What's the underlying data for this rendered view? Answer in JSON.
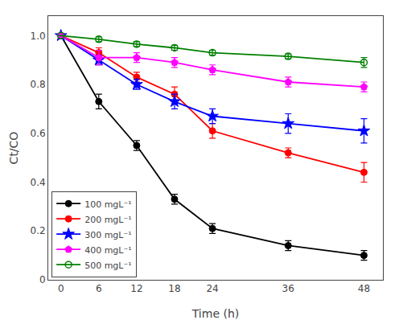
{
  "chart_data": {
    "type": "line",
    "x_label": "Time (h)",
    "y_label": "Ct/CO",
    "x": [
      0,
      6,
      12,
      18,
      24,
      36,
      48
    ],
    "series": [
      {
        "name": "100 mgL⁻¹",
        "color": "black",
        "marker": "circle",
        "values": [
          1.0,
          0.73,
          0.55,
          0.33,
          0.21,
          0.14,
          0.1
        ],
        "errors": [
          0.0,
          0.03,
          0.02,
          0.02,
          0.02,
          0.02,
          0.02
        ]
      },
      {
        "name": "200 mgL⁻¹",
        "color": "red",
        "marker": "circle",
        "values": [
          1.0,
          0.93,
          0.83,
          0.76,
          0.61,
          0.52,
          0.44
        ],
        "errors": [
          0.0,
          0.02,
          0.02,
          0.03,
          0.03,
          0.02,
          0.04
        ]
      },
      {
        "name": "300 mgL⁻¹",
        "color": "blue",
        "marker": "star",
        "values": [
          1.0,
          0.9,
          0.8,
          0.73,
          0.67,
          0.64,
          0.61
        ],
        "errors": [
          0.0,
          0.02,
          0.02,
          0.03,
          0.03,
          0.04,
          0.05
        ]
      },
      {
        "name": "400 mgL⁻¹",
        "color": "magenta",
        "marker": "pentagon",
        "values": [
          1.0,
          0.91,
          0.91,
          0.89,
          0.86,
          0.81,
          0.79
        ],
        "errors": [
          0.0,
          0.03,
          0.02,
          0.02,
          0.02,
          0.02,
          0.02
        ]
      },
      {
        "name": "500 mgL⁻¹",
        "color": "green",
        "marker": "circle-open",
        "values": [
          1.0,
          0.985,
          0.965,
          0.95,
          0.93,
          0.915,
          0.89
        ],
        "errors": [
          0.0,
          0.01,
          0.01,
          0.01,
          0.01,
          0.01,
          0.02
        ]
      }
    ],
    "xlim": [
      -2,
      51
    ],
    "ylim": [
      0.0,
      1.08
    ],
    "xticks": [
      0,
      6,
      12,
      18,
      24,
      36,
      48
    ],
    "yticks": [
      0.0,
      {
        "value": 0.2,
        "label": "0.2"
      },
      {
        "value": 0.4,
        "label": "0.4"
      },
      {
        "value": 0.6,
        "label": "0.6"
      },
      {
        "value": 0.8,
        "label": "0.8"
      },
      {
        "value": 1.0,
        "label": "1.0"
      }
    ],
    "grid": false,
    "legend": "lower left"
  }
}
